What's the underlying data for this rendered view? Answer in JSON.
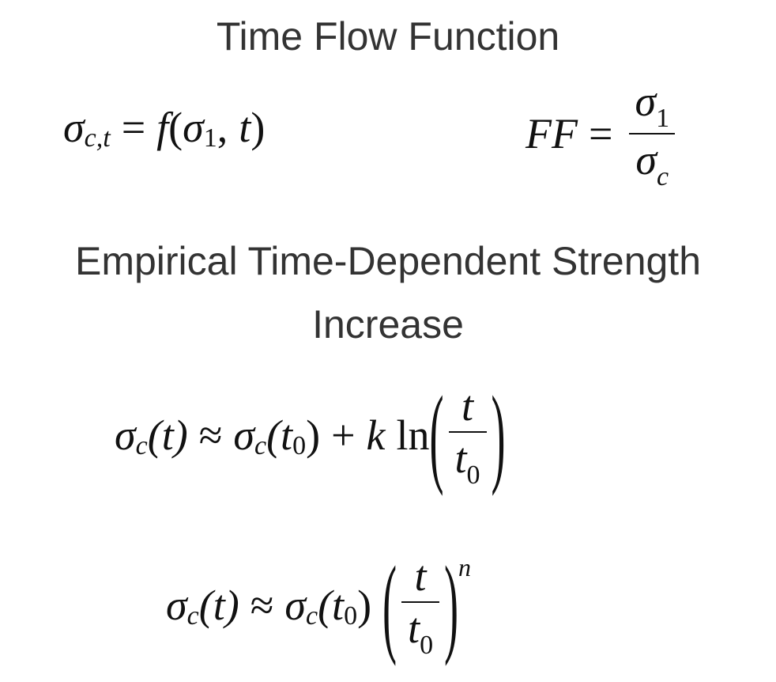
{
  "title": "Time Flow Function",
  "eq1": {
    "sigma": "σ",
    "sub": "c,t",
    "eq": "=",
    "f": "f",
    "open": "(",
    "sigma2": "σ",
    "sub2": "1",
    "comma": ",",
    "t": "t",
    "close": ")"
  },
  "eq2": {
    "ff": "FF",
    "eq": "=",
    "num": "σ",
    "num_sub": "1",
    "den": "σ",
    "den_sub": "c"
  },
  "heading2_line1": "Empirical Time-Dependent Strength",
  "heading2_line2": "Increase",
  "eq3": {
    "sigma": "σ",
    "sub": "c",
    "arg": "(t)",
    "approx": "≈",
    "sigma2": "σ",
    "sub2": "c",
    "arg2_open": "(t",
    "arg2_sub": "0",
    "arg2_close": ")",
    "plus": "+",
    "k": "k",
    "ln": "ln",
    "lparen": "(",
    "num": "t",
    "den": "t",
    "den_sub": "0",
    "rparen": ")"
  },
  "eq4": {
    "sigma": "σ",
    "sub": "c",
    "arg": "(t)",
    "approx": "≈",
    "sigma2": "σ",
    "sub2": "c",
    "arg2_open": "(t",
    "arg2_sub": "0",
    "arg2_close": ")",
    "lparen": "(",
    "num": "t",
    "den": "t",
    "den_sub": "0",
    "rparen": ")",
    "exp": "n"
  }
}
